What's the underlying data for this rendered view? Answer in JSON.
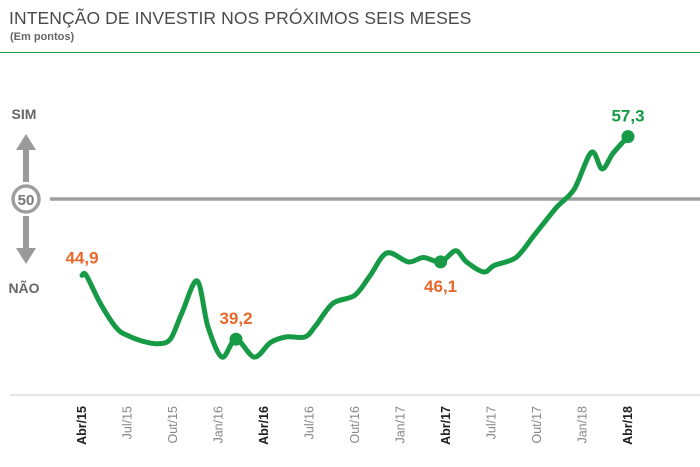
{
  "header": {
    "title": "INTENÇÃO DE INVESTIR NOS PRÓXIMOS SEIS MESES",
    "subtitle": "(Em pontos)"
  },
  "colors": {
    "line": "#169a45",
    "label_orange": "#e8672a",
    "label_green": "#169a45",
    "reference": "#9e9e9e",
    "rule": "#1a9a4a",
    "text": "#4a4a4a",
    "tick_bold": "#222222",
    "tick_light": "#888888"
  },
  "chart_data": {
    "type": "line",
    "title": "INTENÇÃO DE INVESTIR NOS PRÓXIMOS SEIS MESES",
    "subtitle": "(Em pontos)",
    "xlabel": "",
    "ylabel": "",
    "reference_value": 50,
    "reference_label": "50",
    "indicator_up_label": "SIM",
    "indicator_down_label": "NÃO",
    "ylim": [
      36.0,
      60.3
    ],
    "grid": false,
    "x_ticks": [
      {
        "label": "Abr/15",
        "index": 0,
        "bold": true
      },
      {
        "label": "Jul/15",
        "index": 3,
        "bold": false
      },
      {
        "label": "Out/15",
        "index": 6,
        "bold": false
      },
      {
        "label": "Jan/16",
        "index": 9,
        "bold": false
      },
      {
        "label": "Abr/16",
        "index": 12,
        "bold": true
      },
      {
        "label": "Jul/16",
        "index": 15,
        "bold": false
      },
      {
        "label": "Out/16",
        "index": 18,
        "bold": false
      },
      {
        "label": "Jan/17",
        "index": 21,
        "bold": false
      },
      {
        "label": "Abr/17",
        "index": 24,
        "bold": true
      },
      {
        "label": "Jul/17",
        "index": 27,
        "bold": false
      },
      {
        "label": "Out/17",
        "index": 30,
        "bold": false
      },
      {
        "label": "Jan/18",
        "index": 33,
        "bold": false
      },
      {
        "label": "Abr/18",
        "index": 36,
        "bold": true
      }
    ],
    "series": [
      {
        "values": [
          44.9,
          44.9,
          42.4,
          40.2,
          39.5,
          39.0,
          38.8,
          39.2,
          41.6,
          44.4,
          40.3,
          37.6,
          39.2,
          37.6,
          38.9,
          39.4,
          39.4,
          40.4,
          42.4,
          43.1,
          44.8,
          46.9,
          46.1,
          46.5,
          46.1,
          47.1,
          46.1,
          45.2,
          45.8,
          46.5,
          48.5,
          50.9,
          52.6,
          55.9,
          54.4,
          55.8,
          57.3
        ],
        "x_fraction": [
          0.0,
          0.04,
          0.17,
          0.32,
          0.43,
          0.57,
          0.7,
          0.82,
          0.93,
          1.07,
          1.17,
          1.3,
          1.43,
          1.6,
          1.75,
          1.9,
          2.07,
          2.17,
          2.33,
          2.53,
          2.67,
          2.83,
          3.03,
          3.17,
          3.33,
          3.47,
          3.57,
          3.73,
          3.83,
          4.03,
          4.2,
          4.4,
          4.57,
          4.73,
          4.83,
          4.93,
          5.07
        ]
      }
    ],
    "annotations": [
      {
        "point": 0,
        "label": "44,9",
        "color": "orange",
        "marker": false,
        "placement": "above-left"
      },
      {
        "point": 12,
        "label": "39,2",
        "color": "orange",
        "marker": true,
        "placement": "above"
      },
      {
        "point": 24,
        "label": "46,1",
        "color": "orange",
        "marker": true,
        "placement": "below"
      },
      {
        "point": 36,
        "label": "57,3",
        "color": "green",
        "marker": true,
        "placement": "above"
      }
    ]
  }
}
